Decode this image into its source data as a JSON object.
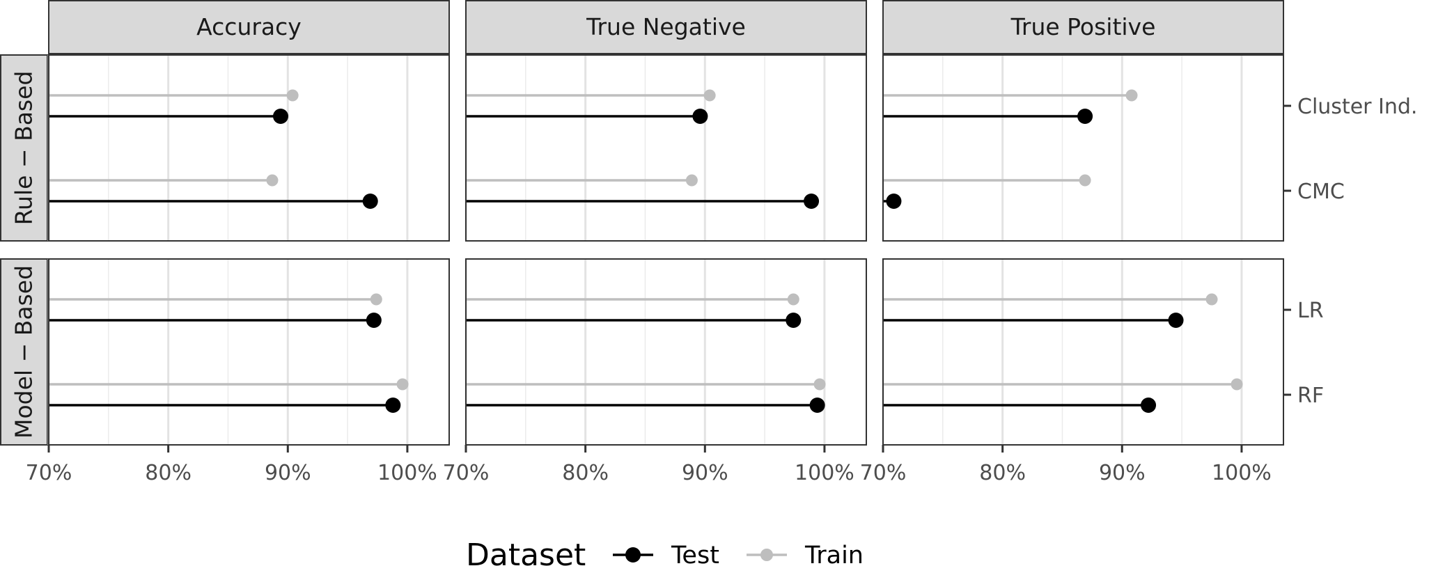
{
  "chart_data": {
    "type": "lollipop",
    "facet_cols": [
      "Accuracy",
      "True Negative",
      "True Positive"
    ],
    "facet_rows": [
      "Rule − Based",
      "Model − Based"
    ],
    "y_categories": {
      "Rule − Based": [
        "Cluster Ind.",
        "CMC"
      ],
      "Model − Based": [
        "LR",
        "RF"
      ]
    },
    "x_axis": {
      "range": [
        0.7,
        1.035
      ],
      "ticks": [
        0.7,
        0.8,
        0.9,
        1.0
      ],
      "tick_labels": [
        "70%",
        "80%",
        "90%",
        "100%"
      ],
      "minor_ticks": [
        0.75,
        0.85,
        0.95
      ]
    },
    "grid": true,
    "legend": {
      "title": "Dataset",
      "position": "bottom",
      "items": [
        {
          "name": "Test",
          "color": "#000000"
        },
        {
          "name": "Train",
          "color": "#bebebe"
        }
      ]
    },
    "series": [
      {
        "name": "Test",
        "color": "#000000",
        "values": {
          "Accuracy": {
            "Cluster Ind.": 0.894,
            "CMC": 0.969,
            "LR": 0.972,
            "RF": 0.988
          },
          "True Negative": {
            "Cluster Ind.": 0.896,
            "CMC": 0.989,
            "LR": 0.974,
            "RF": 0.994
          },
          "True Positive": {
            "Cluster Ind.": 0.869,
            "CMC": 0.709,
            "LR": 0.945,
            "RF": 0.922
          }
        }
      },
      {
        "name": "Train",
        "color": "#bebebe",
        "values": {
          "Accuracy": {
            "Cluster Ind.": 0.904,
            "CMC": 0.887,
            "LR": 0.974,
            "RF": 0.996
          },
          "True Negative": {
            "Cluster Ind.": 0.904,
            "CMC": 0.889,
            "LR": 0.974,
            "RF": 0.996
          },
          "True Positive": {
            "Cluster Ind.": 0.908,
            "CMC": 0.869,
            "LR": 0.975,
            "RF": 0.996
          }
        }
      }
    ]
  }
}
